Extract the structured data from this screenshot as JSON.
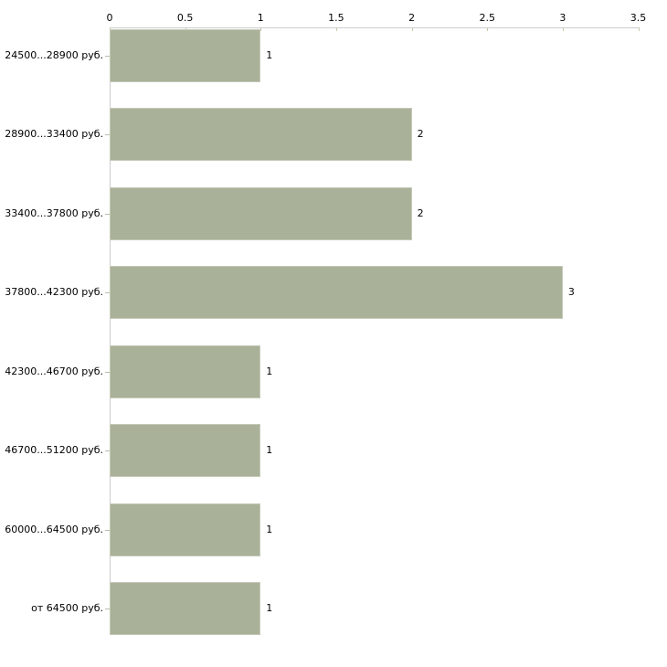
{
  "chart_data": {
    "type": "bar",
    "orientation": "horizontal",
    "title": "",
    "categories": [
      "24500...28900 руб.",
      "28900...33400 руб.",
      "33400...37800 руб.",
      "37800...42300 руб.",
      "42300...46700 руб.",
      "46700...51200 руб.",
      "60000...64500 руб.",
      "от 64500 руб."
    ],
    "values": [
      1,
      2,
      2,
      3,
      1,
      1,
      1,
      1
    ],
    "x_tick_labels": [
      "0",
      "0.5",
      "1",
      "1.5",
      "2",
      "2.5",
      "3",
      "3.5"
    ],
    "xlim": [
      0,
      3.5
    ],
    "xlabel": "",
    "ylabel": "",
    "grid": false,
    "legend": false,
    "value_labels_shown": true,
    "colors": {
      "bar_fill": "#a9b199",
      "bar_border": "#c6c9b8",
      "axis_line": "#cccccc",
      "x_tick_mark": "#c9c9ae",
      "category_tick_mark": "#b9bcab",
      "text": "#000000",
      "background": "#ffffff"
    }
  }
}
